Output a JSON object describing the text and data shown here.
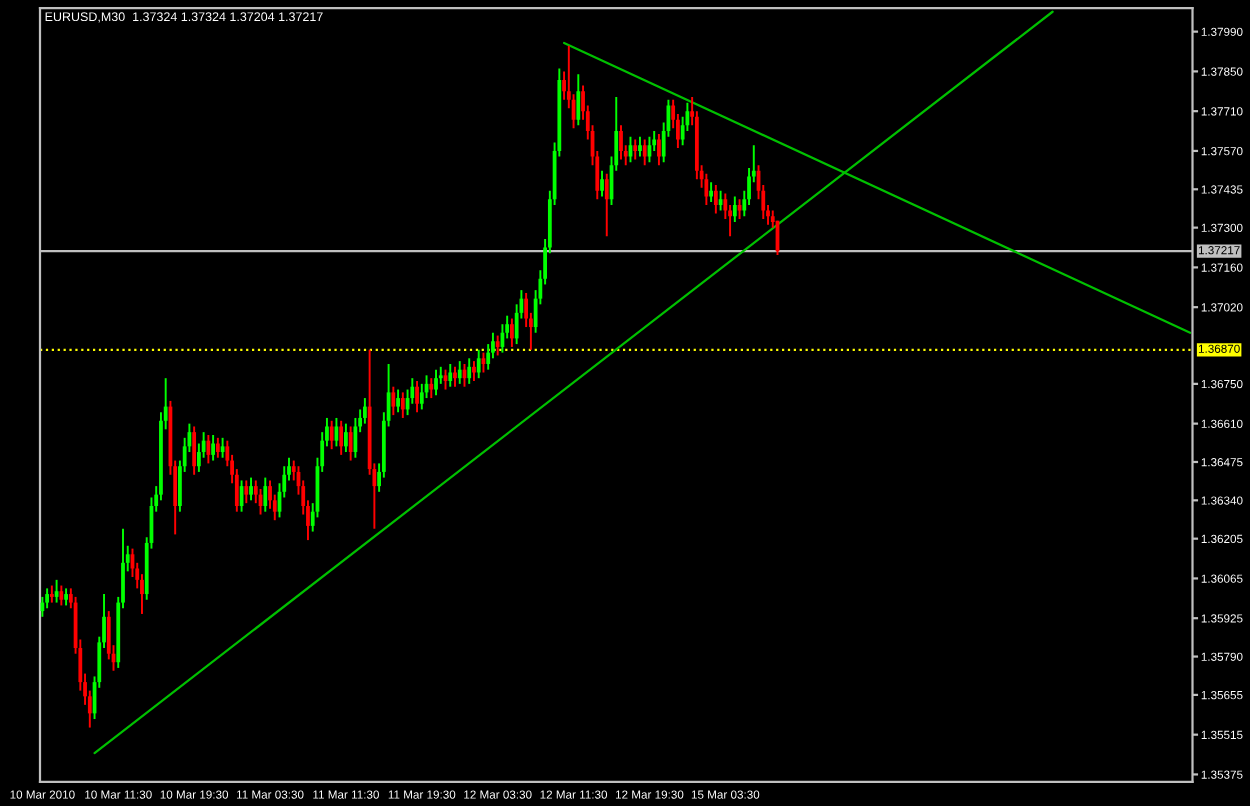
{
  "chart_data": {
    "type": "candlestick",
    "title": "EURUSD,M30  1.37324 1.37324 1.37204 1.37217",
    "categories": [
      "10 Mar 2010",
      null,
      null,
      null,
      null,
      null,
      null,
      null,
      null,
      null,
      null,
      null,
      null,
      null,
      null,
      null,
      "10 Mar 11:30",
      null,
      null,
      null,
      null,
      null,
      null,
      null,
      null,
      null,
      null,
      null,
      null,
      null,
      null,
      null,
      "10 Mar 19:30",
      null,
      null,
      null,
      null,
      null,
      null,
      null,
      null,
      null,
      null,
      null,
      null,
      null,
      null,
      null,
      "11 Mar 03:30",
      null,
      null,
      null,
      null,
      null,
      null,
      null,
      null,
      null,
      null,
      null,
      null,
      null,
      null,
      null,
      "11 Mar 11:30",
      null,
      null,
      null,
      null,
      null,
      null,
      null,
      null,
      null,
      null,
      null,
      null,
      null,
      null,
      null,
      "11 Mar 19:30",
      null,
      null,
      null,
      null,
      null,
      null,
      null,
      null,
      null,
      null,
      null,
      null,
      null,
      null,
      null,
      "12 Mar 03:30",
      null,
      null,
      null,
      null,
      null,
      null,
      null,
      null,
      null,
      null,
      null,
      null,
      null,
      null,
      null,
      "12 Mar 11:30",
      null,
      null,
      null,
      null,
      null,
      null,
      null,
      null,
      null,
      null,
      null,
      null,
      null,
      null,
      null,
      "12 Mar 19:30",
      null,
      null,
      null,
      null,
      null,
      null,
      null,
      null,
      null,
      null,
      null,
      null,
      null,
      null,
      null,
      "15 Mar 03:30",
      null,
      null,
      null,
      null,
      null,
      null,
      null,
      null,
      null,
      null,
      null,
      null,
      null,
      null,
      null,
      null,
      null,
      null,
      null,
      null,
      null,
      null,
      null,
      null,
      null,
      null,
      null,
      null,
      null,
      null,
      null,
      null,
      null,
      null,
      null,
      null,
      null,
      null,
      null,
      null,
      null,
      null,
      null,
      null,
      null,
      null,
      null,
      null,
      null,
      null,
      null,
      null,
      null,
      null,
      null,
      null,
      null,
      null,
      null,
      null,
      null,
      null,
      null,
      null,
      null,
      null,
      null,
      null,
      null,
      null,
      null,
      null,
      null,
      null,
      null,
      null,
      null,
      null,
      null,
      null,
      null,
      null,
      null,
      null,
      null,
      null,
      null,
      null,
      null,
      null,
      null,
      null,
      null,
      null,
      null,
      null,
      null,
      null
    ],
    "ohlc": [
      [
        1.3595,
        1.36,
        1.3593,
        1.3598
      ],
      [
        1.3598,
        1.3603,
        1.3596,
        1.3601
      ],
      [
        1.3601,
        1.3604,
        1.3598,
        1.36
      ],
      [
        1.36,
        1.3606,
        1.3598,
        1.3602
      ],
      [
        1.3602,
        1.3604,
        1.3597,
        1.3599
      ],
      [
        1.3599,
        1.3603,
        1.3597,
        1.3601
      ],
      [
        1.3601,
        1.3603,
        1.3596,
        1.3598
      ],
      [
        1.3598,
        1.36,
        1.358,
        1.3582
      ],
      [
        1.3582,
        1.3585,
        1.3567,
        1.357
      ],
      [
        1.357,
        1.3573,
        1.3562,
        1.3565
      ],
      [
        1.3565,
        1.3567,
        1.3554,
        1.3559
      ],
      [
        1.3559,
        1.3572,
        1.3557,
        1.357
      ],
      [
        1.357,
        1.3586,
        1.3568,
        1.3584
      ],
      [
        1.3584,
        1.3601,
        1.3582,
        1.3593
      ],
      [
        1.3593,
        1.3595,
        1.3578,
        1.358
      ],
      [
        1.358,
        1.3583,
        1.3574,
        1.3577
      ],
      [
        1.3577,
        1.36,
        1.3575,
        1.3598
      ],
      [
        1.3598,
        1.3624,
        1.3596,
        1.3612
      ],
      [
        1.3612,
        1.3618,
        1.3609,
        1.3615
      ],
      [
        1.3615,
        1.3617,
        1.3607,
        1.361
      ],
      [
        1.361,
        1.3612,
        1.3603,
        1.3606
      ],
      [
        1.3606,
        1.3608,
        1.3594,
        1.3601
      ],
      [
        1.3601,
        1.3621,
        1.3599,
        1.3619
      ],
      [
        1.3619,
        1.3635,
        1.3617,
        1.3632
      ],
      [
        1.3632,
        1.3639,
        1.363,
        1.3636
      ],
      [
        1.3636,
        1.3665,
        1.3634,
        1.3662
      ],
      [
        1.3662,
        1.3677,
        1.3659,
        1.3667
      ],
      [
        1.3667,
        1.3669,
        1.3643,
        1.3646
      ],
      [
        1.3646,
        1.3648,
        1.3622,
        1.3632
      ],
      [
        1.3632,
        1.3648,
        1.363,
        1.3646
      ],
      [
        1.3646,
        1.3656,
        1.3644,
        1.3653
      ],
      [
        1.3653,
        1.3661,
        1.3651,
        1.3658
      ],
      [
        1.3658,
        1.366,
        1.3643,
        1.3646
      ],
      [
        1.3646,
        1.3654,
        1.3644,
        1.3651
      ],
      [
        1.3651,
        1.3658,
        1.3649,
        1.3655
      ],
      [
        1.3655,
        1.3657,
        1.3647,
        1.365
      ],
      [
        1.365,
        1.3657,
        1.3648,
        1.3654
      ],
      [
        1.3654,
        1.3656,
        1.3649,
        1.3651
      ],
      [
        1.3651,
        1.3656,
        1.3649,
        1.3653
      ],
      [
        1.3653,
        1.3655,
        1.3646,
        1.3648
      ],
      [
        1.3648,
        1.365,
        1.364,
        1.3643
      ],
      [
        1.3643,
        1.3645,
        1.363,
        1.3632
      ],
      [
        1.3632,
        1.3641,
        1.363,
        1.3639
      ],
      [
        1.3639,
        1.3641,
        1.3633,
        1.3636
      ],
      [
        1.3636,
        1.3642,
        1.3634,
        1.3639
      ],
      [
        1.3639,
        1.3641,
        1.3633,
        1.3636
      ],
      [
        1.3636,
        1.3638,
        1.3629,
        1.3632
      ],
      [
        1.3632,
        1.3642,
        1.363,
        1.3639
      ],
      [
        1.3639,
        1.3641,
        1.3631,
        1.3634
      ],
      [
        1.3634,
        1.3636,
        1.3627,
        1.363
      ],
      [
        1.363,
        1.364,
        1.3628,
        1.3637
      ],
      [
        1.3637,
        1.3646,
        1.3635,
        1.3643
      ],
      [
        1.3643,
        1.3649,
        1.3641,
        1.3646
      ],
      [
        1.3646,
        1.3648,
        1.3641,
        1.3644
      ],
      [
        1.3644,
        1.3646,
        1.3636,
        1.3639
      ],
      [
        1.3639,
        1.3641,
        1.3629,
        1.3632
      ],
      [
        1.3632,
        1.3634,
        1.362,
        1.3625
      ],
      [
        1.3625,
        1.3633,
        1.3623,
        1.363
      ],
      [
        1.363,
        1.3649,
        1.3628,
        1.3646
      ],
      [
        1.3646,
        1.3658,
        1.3644,
        1.3655
      ],
      [
        1.3655,
        1.3663,
        1.3653,
        1.366
      ],
      [
        1.366,
        1.3662,
        1.3652,
        1.3655
      ],
      [
        1.3655,
        1.3663,
        1.3653,
        1.366
      ],
      [
        1.366,
        1.3662,
        1.365,
        1.3653
      ],
      [
        1.3653,
        1.3661,
        1.3651,
        1.3658
      ],
      [
        1.3658,
        1.366,
        1.3648,
        1.3651
      ],
      [
        1.3651,
        1.3663,
        1.3649,
        1.366
      ],
      [
        1.366,
        1.3666,
        1.3658,
        1.3663
      ],
      [
        1.3663,
        1.367,
        1.3661,
        1.3667
      ],
      [
        1.3667,
        1.3687,
        1.3643,
        1.3645
      ],
      [
        1.3645,
        1.3647,
        1.3624,
        1.3639
      ],
      [
        1.3639,
        1.3647,
        1.3637,
        1.3644
      ],
      [
        1.3644,
        1.3665,
        1.3642,
        1.3662
      ],
      [
        1.3662,
        1.3682,
        1.366,
        1.3672
      ],
      [
        1.3672,
        1.3674,
        1.3664,
        1.3667
      ],
      [
        1.3667,
        1.3673,
        1.3665,
        1.367
      ],
      [
        1.367,
        1.3672,
        1.3663,
        1.3666
      ],
      [
        1.3666,
        1.3673,
        1.3664,
        1.367
      ],
      [
        1.367,
        1.3677,
        1.3668,
        1.3674
      ],
      [
        1.3674,
        1.3676,
        1.3665,
        1.3668
      ],
      [
        1.3668,
        1.3675,
        1.3666,
        1.3672
      ],
      [
        1.3672,
        1.3678,
        1.367,
        1.3675
      ],
      [
        1.3675,
        1.3677,
        1.367,
        1.3673
      ],
      [
        1.3673,
        1.368,
        1.3671,
        1.3677
      ],
      [
        1.3677,
        1.3681,
        1.3675,
        1.3678
      ],
      [
        1.3678,
        1.368,
        1.3673,
        1.3676
      ],
      [
        1.3676,
        1.3682,
        1.3674,
        1.3679
      ],
      [
        1.3679,
        1.3681,
        1.3674,
        1.3677
      ],
      [
        1.3677,
        1.3683,
        1.3675,
        1.368
      ],
      [
        1.368,
        1.3682,
        1.3674,
        1.3677
      ],
      [
        1.3677,
        1.3684,
        1.3675,
        1.3681
      ],
      [
        1.3681,
        1.3683,
        1.3676,
        1.3679
      ],
      [
        1.3679,
        1.3687,
        1.3677,
        1.3684
      ],
      [
        1.3684,
        1.3686,
        1.3679,
        1.3682
      ],
      [
        1.3682,
        1.3689,
        1.368,
        1.3686
      ],
      [
        1.3686,
        1.3693,
        1.3684,
        1.369
      ],
      [
        1.369,
        1.3692,
        1.3685,
        1.3688
      ],
      [
        1.3688,
        1.3696,
        1.3686,
        1.3693
      ],
      [
        1.3693,
        1.3699,
        1.3691,
        1.3696
      ],
      [
        1.3696,
        1.3698,
        1.3688,
        1.3691
      ],
      [
        1.3691,
        1.3703,
        1.3689,
        1.37
      ],
      [
        1.37,
        1.3708,
        1.3698,
        1.3705
      ],
      [
        1.3705,
        1.3707,
        1.3695,
        1.3698
      ],
      [
        1.3698,
        1.37,
        1.3687,
        1.3695
      ],
      [
        1.3695,
        1.3708,
        1.3693,
        1.3705
      ],
      [
        1.3705,
        1.3715,
        1.3703,
        1.3712
      ],
      [
        1.3712,
        1.3726,
        1.371,
        1.3723
      ],
      [
        1.3723,
        1.3743,
        1.3721,
        1.374
      ],
      [
        1.374,
        1.376,
        1.3738,
        1.3757
      ],
      [
        1.3757,
        1.3786,
        1.3755,
        1.3782
      ],
      [
        1.3782,
        1.3785,
        1.3775,
        1.3778
      ],
      [
        1.3778,
        1.3794,
        1.3772,
        1.3775
      ],
      [
        1.3775,
        1.3777,
        1.3765,
        1.3768
      ],
      [
        1.3768,
        1.3784,
        1.3766,
        1.3778
      ],
      [
        1.3778,
        1.378,
        1.3768,
        1.3771
      ],
      [
        1.3771,
        1.3773,
        1.3761,
        1.3764
      ],
      [
        1.3764,
        1.3766,
        1.3752,
        1.3755
      ],
      [
        1.3755,
        1.3757,
        1.374,
        1.3743
      ],
      [
        1.3743,
        1.375,
        1.3741,
        1.3747
      ],
      [
        1.3747,
        1.3749,
        1.3727,
        1.374
      ],
      [
        1.374,
        1.3755,
        1.3738,
        1.3752
      ],
      [
        1.3752,
        1.3776,
        1.375,
        1.3764
      ],
      [
        1.3764,
        1.3766,
        1.3754,
        1.3757
      ],
      [
        1.3757,
        1.3759,
        1.3752,
        1.3755
      ],
      [
        1.3755,
        1.3762,
        1.3753,
        1.3759
      ],
      [
        1.3759,
        1.3761,
        1.3754,
        1.3757
      ],
      [
        1.3757,
        1.3762,
        1.3755,
        1.3759
      ],
      [
        1.3759,
        1.3761,
        1.3752,
        1.3755
      ],
      [
        1.3755,
        1.3762,
        1.3753,
        1.3759
      ],
      [
        1.3759,
        1.3764,
        1.3757,
        1.3761
      ],
      [
        1.3761,
        1.3763,
        1.3752,
        1.3755
      ],
      [
        1.3755,
        1.3767,
        1.3753,
        1.3764
      ],
      [
        1.3764,
        1.3775,
        1.3762,
        1.3773
      ],
      [
        1.3773,
        1.3775,
        1.3765,
        1.3768
      ],
      [
        1.3768,
        1.377,
        1.3758,
        1.3761
      ],
      [
        1.3761,
        1.3769,
        1.3759,
        1.3766
      ],
      [
        1.3766,
        1.3774,
        1.3764,
        1.3771
      ],
      [
        1.3771,
        1.3776,
        1.3766,
        1.3769
      ],
      [
        1.3769,
        1.3771,
        1.3747,
        1.375
      ],
      [
        1.375,
        1.3752,
        1.3744,
        1.3747
      ],
      [
        1.3747,
        1.3749,
        1.3738,
        1.3741
      ],
      [
        1.3741,
        1.3746,
        1.3739,
        1.3743
      ],
      [
        1.3743,
        1.3745,
        1.3735,
        1.3738
      ],
      [
        1.3738,
        1.3743,
        1.3736,
        1.374
      ],
      [
        1.374,
        1.3742,
        1.3733,
        1.3736
      ],
      [
        1.3736,
        1.3738,
        1.3727,
        1.3734
      ],
      [
        1.3734,
        1.3741,
        1.3732,
        1.3738
      ],
      [
        1.3738,
        1.374,
        1.3733,
        1.3736
      ],
      [
        1.3736,
        1.3743,
        1.3734,
        1.374
      ],
      [
        1.374,
        1.3751,
        1.3738,
        1.3748
      ],
      [
        1.3748,
        1.3759,
        1.3746,
        1.375
      ],
      [
        1.375,
        1.3752,
        1.374,
        1.3743
      ],
      [
        1.3743,
        1.3745,
        1.3733,
        1.3736
      ],
      [
        1.3736,
        1.3738,
        1.3731,
        1.3734
      ],
      [
        1.3734,
        1.3736,
        1.373,
        1.3732
      ],
      [
        1.37324,
        1.37324,
        1.37204,
        1.37217
      ],
      null,
      null,
      null,
      null,
      null,
      null,
      null,
      null,
      null,
      null,
      null,
      null,
      null,
      null,
      null,
      null,
      null,
      null,
      null,
      null,
      null,
      null,
      null,
      null,
      null,
      null,
      null,
      null,
      null,
      null,
      null,
      null,
      null,
      null,
      null,
      null,
      null,
      null,
      null,
      null,
      null,
      null,
      null,
      null,
      null,
      null,
      null,
      null,
      null,
      null,
      null,
      null,
      null,
      null,
      null,
      null,
      null,
      null,
      null,
      null,
      null,
      null,
      null,
      null,
      null,
      null,
      null,
      null,
      null,
      null,
      null,
      null,
      null,
      null,
      null,
      null,
      null,
      null,
      null,
      null,
      null,
      null,
      null,
      null,
      null,
      null,
      null
    ],
    "series": [
      {
        "type": "line",
        "color": "#00c000",
        "values": [
          null,
          null,
          null,
          null,
          null,
          null,
          null,
          null,
          null,
          null,
          null,
          1.3545,
          null,
          null,
          null,
          null,
          null,
          null,
          null,
          null,
          null,
          null,
          null,
          null,
          null,
          null,
          null,
          null,
          null,
          null,
          null,
          null,
          null,
          null,
          null,
          null,
          null,
          null,
          null,
          null,
          null,
          null,
          null,
          null,
          null,
          null,
          null,
          null,
          null,
          null,
          null,
          null,
          null,
          null,
          null,
          null,
          null,
          null,
          null,
          null,
          null,
          null,
          null,
          null,
          null,
          null,
          null,
          null,
          null,
          null,
          null,
          null,
          null,
          null,
          null,
          null,
          null,
          null,
          null,
          null,
          null,
          null,
          null,
          null,
          null,
          null,
          null,
          null,
          null,
          null,
          null,
          null,
          null,
          null,
          null,
          null,
          null,
          null,
          null,
          null,
          null,
          null,
          null,
          null,
          null,
          null,
          null,
          null,
          null,
          null,
          null,
          null,
          null,
          null,
          null,
          null,
          null,
          null,
          null,
          null,
          null,
          null,
          null,
          null,
          null,
          null,
          null,
          null,
          null,
          null,
          null,
          null,
          null,
          null,
          null,
          null,
          null,
          null,
          null,
          null,
          null,
          null,
          null,
          null,
          null,
          null,
          null,
          null,
          null,
          null,
          null,
          null,
          null,
          null,
          null,
          null,
          null,
          null,
          null,
          null,
          null,
          null,
          null,
          null,
          null,
          null,
          null,
          null,
          null,
          null,
          null,
          null,
          null,
          null,
          null,
          null,
          null,
          null,
          null,
          null,
          null,
          null,
          null,
          null,
          null,
          null,
          null,
          null,
          null,
          null,
          null,
          null,
          null,
          null,
          null,
          null,
          null,
          null,
          null,
          null,
          null,
          null,
          null,
          null,
          null,
          null,
          null,
          null,
          null,
          null,
          null,
          null,
          null,
          1.3806,
          null,
          null,
          null,
          null,
          null,
          null,
          null,
          null,
          null,
          null,
          null,
          null,
          null,
          null,
          null,
          null,
          null,
          null,
          null,
          null,
          null,
          null,
          null,
          null,
          null,
          null,
          null,
          null,
          null
        ]
      },
      {
        "type": "line",
        "color": "#00c000",
        "values": [
          null,
          null,
          null,
          null,
          null,
          null,
          null,
          null,
          null,
          null,
          null,
          null,
          null,
          null,
          null,
          null,
          null,
          null,
          null,
          null,
          null,
          null,
          null,
          null,
          null,
          null,
          null,
          null,
          null,
          null,
          null,
          null,
          null,
          null,
          null,
          null,
          null,
          null,
          null,
          null,
          null,
          null,
          null,
          null,
          null,
          null,
          null,
          null,
          null,
          null,
          null,
          null,
          null,
          null,
          null,
          null,
          null,
          null,
          null,
          null,
          null,
          null,
          null,
          null,
          null,
          null,
          null,
          null,
          null,
          null,
          null,
          null,
          null,
          null,
          null,
          null,
          null,
          null,
          null,
          null,
          null,
          null,
          null,
          null,
          null,
          null,
          null,
          null,
          null,
          null,
          null,
          null,
          null,
          null,
          null,
          null,
          null,
          null,
          null,
          null,
          null,
          null,
          null,
          null,
          null,
          null,
          null,
          null,
          null,
          null,
          1.3795,
          null,
          null,
          null,
          null,
          null,
          null,
          null,
          null,
          null,
          null,
          null,
          null,
          null,
          null,
          null,
          null,
          null,
          null,
          null,
          null,
          null,
          null,
          null,
          null,
          null,
          null,
          null,
          null,
          null,
          null,
          null,
          null,
          null,
          null,
          null,
          null,
          null,
          null,
          null,
          null,
          null,
          null,
          null,
          null,
          null,
          null,
          null,
          null,
          null,
          null,
          null,
          null,
          null,
          null,
          null,
          null,
          null,
          null,
          null,
          null,
          null,
          null,
          null,
          null,
          null,
          null,
          null,
          null,
          null,
          null,
          null,
          null,
          null,
          null,
          null,
          null,
          null,
          null,
          null,
          null,
          null,
          null,
          null,
          null,
          null,
          null,
          null,
          null,
          null,
          null,
          null,
          null,
          null,
          null,
          null,
          null,
          null,
          null,
          null,
          null,
          null,
          null,
          null,
          null,
          null,
          null,
          null,
          null,
          null,
          null,
          null,
          null,
          null,
          null,
          null,
          null,
          null,
          null,
          null,
          null,
          null,
          null,
          null,
          null,
          null,
          null,
          null,
          null,
          null,
          null,
          null,
          1.3693
        ]
      }
    ],
    "ref_lines": [
      {
        "axis": "y",
        "value": 1.37217,
        "label": "1.37217",
        "color": "#c0c0c0",
        "line_style": "solid"
      },
      {
        "axis": "y",
        "value": 1.3687,
        "label": "1.36870",
        "color": "#ffff00",
        "line_style": "dotted"
      }
    ],
    "ylim": [
      1.35349,
      1.38073
    ],
    "yticks": [
      {
        "value": 1.3799,
        "label": "1.37990"
      },
      {
        "value": 1.3785,
        "label": "1.37850"
      },
      {
        "value": 1.3771,
        "label": "1.37710"
      },
      {
        "value": 1.3757,
        "label": "1.37570"
      },
      {
        "value": 1.37435,
        "label": "1.37435"
      },
      {
        "value": 1.373,
        "label": "1.37300"
      },
      {
        "value": 1.3716,
        "label": "1.37160"
      },
      {
        "value": 1.3702,
        "label": "1.37020"
      },
      {
        "value": 1.3675,
        "label": "1.36750"
      },
      {
        "value": 1.3661,
        "label": "1.36610"
      },
      {
        "value": 1.36475,
        "label": "1.36475"
      },
      {
        "value": 1.3634,
        "label": "1.36340"
      },
      {
        "value": 1.36205,
        "label": "1.36205"
      },
      {
        "value": 1.36065,
        "label": "1.36065"
      },
      {
        "value": 1.35925,
        "label": "1.35925"
      },
      {
        "value": 1.3579,
        "label": "1.35790"
      },
      {
        "value": 1.35655,
        "label": "1.35655"
      },
      {
        "value": 1.35515,
        "label": "1.35515"
      },
      {
        "value": 1.35375,
        "label": "1.35375"
      }
    ],
    "grid": false,
    "legend": false
  }
}
